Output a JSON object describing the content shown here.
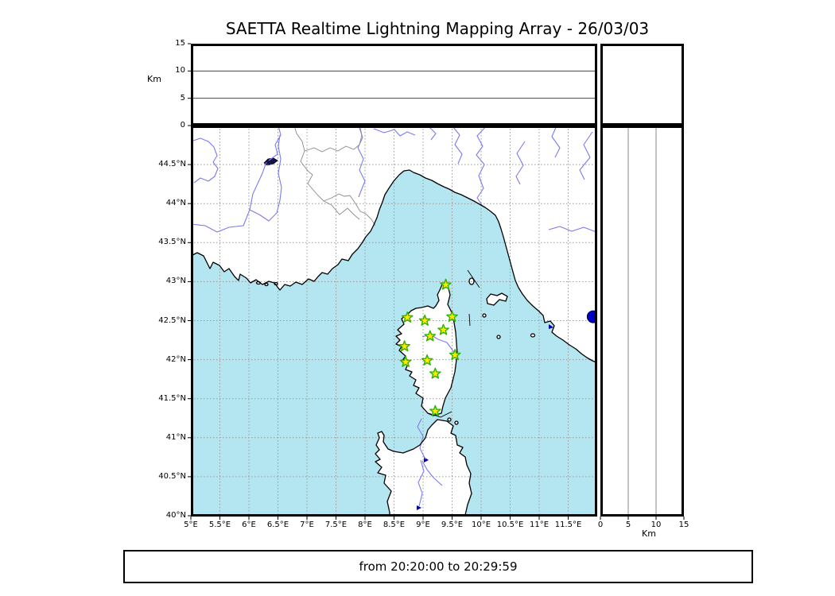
{
  "title": "SAETTA Realtime Lightning Mapping Array - 26/03/03",
  "footer": {
    "text": "from 20:20:00 to 20:29:59"
  },
  "altitude_axis": {
    "label": "Km",
    "ticks": [
      "15",
      "10",
      "5",
      "0"
    ],
    "tick_values_km": [
      15,
      10,
      5,
      0
    ],
    "gridline_values_km": [
      10,
      5
    ]
  },
  "bottom_km_axis": {
    "label": "Km",
    "ticks": [
      "0",
      "5",
      "10",
      "15"
    ],
    "tick_values_km": [
      0,
      5,
      10,
      15
    ],
    "gridline_values_km": [
      5,
      10
    ]
  },
  "map": {
    "lon_tick_labels": [
      "5°E",
      "5.5°E",
      "6°E",
      "6.5°E",
      "7°E",
      "7.5°E",
      "8°E",
      "8.5°E",
      "9°E",
      "9.5°E",
      "10°E",
      "10.5°E",
      "11°E",
      "11.5°E"
    ],
    "lat_tick_labels": [
      "44.5°N",
      "44°N",
      "43.5°N",
      "43°N",
      "42.5°N",
      "42°N",
      "41.5°N",
      "41°N",
      "40.5°N",
      "40°N"
    ],
    "lon_range_deg_e": [
      5,
      12
    ],
    "lat_range_deg_n": [
      40,
      45
    ],
    "grid_step_deg": 0.5
  },
  "stations": {
    "marker": "green-edged yellow star",
    "lonlat": [
      [
        9.39,
        42.96
      ],
      [
        8.73,
        42.54
      ],
      [
        9.03,
        42.5
      ],
      [
        9.5,
        42.55
      ],
      [
        9.35,
        42.38
      ],
      [
        9.12,
        42.3
      ],
      [
        8.68,
        42.17
      ],
      [
        9.55,
        42.06
      ],
      [
        8.7,
        41.97
      ],
      [
        9.07,
        41.99
      ],
      [
        9.21,
        41.82
      ],
      [
        9.21,
        41.34
      ]
    ]
  },
  "event_dot": {
    "lonlat": [
      11.93,
      42.55
    ],
    "color": "#0000cc"
  },
  "colors": {
    "sea": "#b4e6f1",
    "land": "#ffffff",
    "coast": "#000000",
    "river": "#7b7bec",
    "lake": "#0000aa",
    "border_line": "#8a8a8a",
    "grid": "#999999",
    "star_fill": "#ffe800",
    "star_edge": "#2db300"
  }
}
